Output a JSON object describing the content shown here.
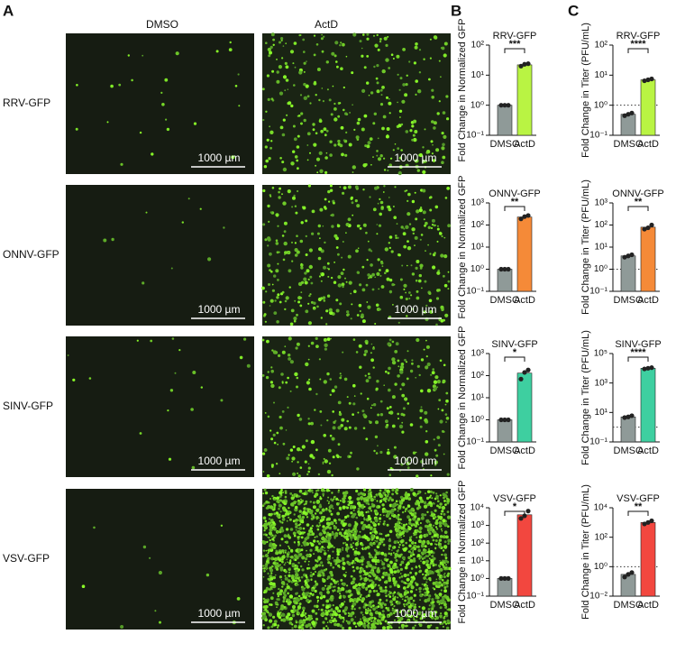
{
  "panels": [
    "A",
    "B",
    "C"
  ],
  "images": {
    "columns": [
      "DMSO",
      "ActD"
    ],
    "rows": [
      "RRV-GFP",
      "ONNV-GFP",
      "SINV-GFP",
      "VSV-GFP"
    ],
    "scale_bar": "1000 µm"
  },
  "chart_data": [
    {
      "type": "bar",
      "title": "RRV-GFP",
      "ylabel": "Fold Change in Normalized GFP",
      "categories": [
        "DMSO",
        "ActD"
      ],
      "values": [
        1,
        22
      ],
      "points": [
        [
          1,
          1,
          1
        ],
        [
          20,
          23,
          24
        ]
      ],
      "colors": [
        "#8f9a98",
        "#b9f443"
      ],
      "annotation": "***",
      "log_scale": true,
      "ylim": [
        0.1,
        100
      ],
      "yticks": [
        {
          "value": 0.1,
          "label": "10⁻¹"
        },
        {
          "value": 1,
          "label": "10⁰"
        },
        {
          "value": 10,
          "label": "10¹"
        },
        {
          "value": 100,
          "label": "10²"
        }
      ]
    },
    {
      "type": "bar",
      "title": "ONNV-GFP",
      "ylabel": "Fold Change in Normalized GFP",
      "categories": [
        "DMSO",
        "ActD"
      ],
      "values": [
        1,
        230
      ],
      "points": [
        [
          1,
          1,
          1
        ],
        [
          190,
          240,
          270
        ]
      ],
      "colors": [
        "#8f9a98",
        "#f58a38"
      ],
      "annotation": "**",
      "log_scale": true,
      "ylim": [
        0.1,
        1000
      ],
      "yticks": [
        {
          "value": 0.1,
          "label": "10⁻¹"
        },
        {
          "value": 1,
          "label": "10⁰"
        },
        {
          "value": 10,
          "label": "10¹"
        },
        {
          "value": 100,
          "label": "10²"
        },
        {
          "value": 1000,
          "label": "10³"
        }
      ]
    },
    {
      "type": "bar",
      "title": "SINV-GFP",
      "ylabel": "Fold Change in Normalized GFP",
      "categories": [
        "DMSO",
        "ActD"
      ],
      "values": [
        1,
        130
      ],
      "points": [
        [
          1,
          1,
          1
        ],
        [
          70,
          140,
          180
        ]
      ],
      "colors": [
        "#8f9a98",
        "#3ecfa0"
      ],
      "annotation": "*",
      "log_scale": true,
      "ylim": [
        0.1,
        1000
      ],
      "yticks": [
        {
          "value": 0.1,
          "label": "10⁻¹"
        },
        {
          "value": 1,
          "label": "10⁰"
        },
        {
          "value": 10,
          "label": "10¹"
        },
        {
          "value": 100,
          "label": "10²"
        },
        {
          "value": 1000,
          "label": "10³"
        }
      ]
    },
    {
      "type": "bar",
      "title": "VSV-GFP",
      "ylabel": "Fold Change in Normalized GFP",
      "categories": [
        "DMSO",
        "ActD"
      ],
      "values": [
        1,
        4000
      ],
      "points": [
        [
          1,
          1,
          1
        ],
        [
          2500,
          3500,
          6500
        ]
      ],
      "colors": [
        "#8f9a98",
        "#f2473f"
      ],
      "annotation": "*",
      "log_scale": true,
      "ylim": [
        0.1,
        10000
      ],
      "yticks": [
        {
          "value": 0.1,
          "label": "10⁻¹"
        },
        {
          "value": 1,
          "label": "10⁰"
        },
        {
          "value": 10,
          "label": "10¹"
        },
        {
          "value": 100,
          "label": "10²"
        },
        {
          "value": 1000,
          "label": "10³"
        },
        {
          "value": 10000,
          "label": "10⁴"
        }
      ]
    },
    {
      "type": "bar",
      "title": "RRV-GFP",
      "ylabel": "Fold Change in Titer (PFU/mL)",
      "categories": [
        "DMSO",
        "ActD"
      ],
      "values": [
        0.5,
        7
      ],
      "points": [
        [
          0.45,
          0.5,
          0.55
        ],
        [
          6.5,
          7,
          7.5
        ]
      ],
      "colors": [
        "#8f9a98",
        "#b9f443"
      ],
      "annotation": "****",
      "reference_line": 1,
      "log_scale": true,
      "ylim": [
        0.1,
        100
      ],
      "yticks": [
        {
          "value": 0.1,
          "label": "10⁻¹"
        },
        {
          "value": 1,
          "label": "10⁰"
        },
        {
          "value": 10,
          "label": "10¹"
        },
        {
          "value": 100,
          "label": "10²"
        }
      ]
    },
    {
      "type": "bar",
      "title": "ONNV-GFP",
      "ylabel": "Fold Change in Titer (PFU/mL)",
      "categories": [
        "DMSO",
        "ActD"
      ],
      "values": [
        4,
        80
      ],
      "points": [
        [
          3.5,
          4,
          4.5
        ],
        [
          65,
          75,
          100
        ]
      ],
      "colors": [
        "#8f9a98",
        "#f58a38"
      ],
      "annotation": "**",
      "reference_line": 1,
      "log_scale": true,
      "ylim": [
        0.1,
        1000
      ],
      "yticks": [
        {
          "value": 0.1,
          "label": "10⁻¹"
        },
        {
          "value": 1,
          "label": "10⁰"
        },
        {
          "value": 10,
          "label": "10¹"
        },
        {
          "value": 100,
          "label": "10²"
        },
        {
          "value": 1000,
          "label": "10³"
        }
      ]
    },
    {
      "type": "bar",
      "title": "SINV-GFP",
      "ylabel": "Fold Change in Titer (PFU/mL)",
      "categories": [
        "DMSO",
        "ActD"
      ],
      "values": [
        5,
        10000
      ],
      "points": [
        [
          4.5,
          5,
          6
        ],
        [
          9000,
          10000,
          11000
        ]
      ],
      "colors": [
        "#8f9a98",
        "#3ecfa0"
      ],
      "annotation": "****",
      "reference_line": 1,
      "log_scale": true,
      "ylim": [
        0.1,
        100000
      ],
      "yticks": [
        {
          "value": 0.1,
          "label": "10⁻¹"
        },
        {
          "value": 10,
          "label": "10¹"
        },
        {
          "value": 1000,
          "label": "10³"
        },
        {
          "value": 100000,
          "label": "10⁵"
        }
      ]
    },
    {
      "type": "bar",
      "title": "VSV-GFP",
      "ylabel": "Fold Change in Titer (PFU/mL)",
      "categories": [
        "DMSO",
        "ActD"
      ],
      "values": [
        0.3,
        1000
      ],
      "points": [
        [
          0.2,
          0.3,
          0.4
        ],
        [
          800,
          1000,
          1300
        ]
      ],
      "colors": [
        "#8f9a98",
        "#f2473f"
      ],
      "annotation": "**",
      "reference_line": 1,
      "log_scale": true,
      "ylim": [
        0.01,
        10000
      ],
      "yticks": [
        {
          "value": 0.01,
          "label": "10⁻²"
        },
        {
          "value": 1,
          "label": "10⁰"
        },
        {
          "value": 100,
          "label": "10²"
        },
        {
          "value": 10000,
          "label": "10⁴"
        }
      ]
    }
  ]
}
